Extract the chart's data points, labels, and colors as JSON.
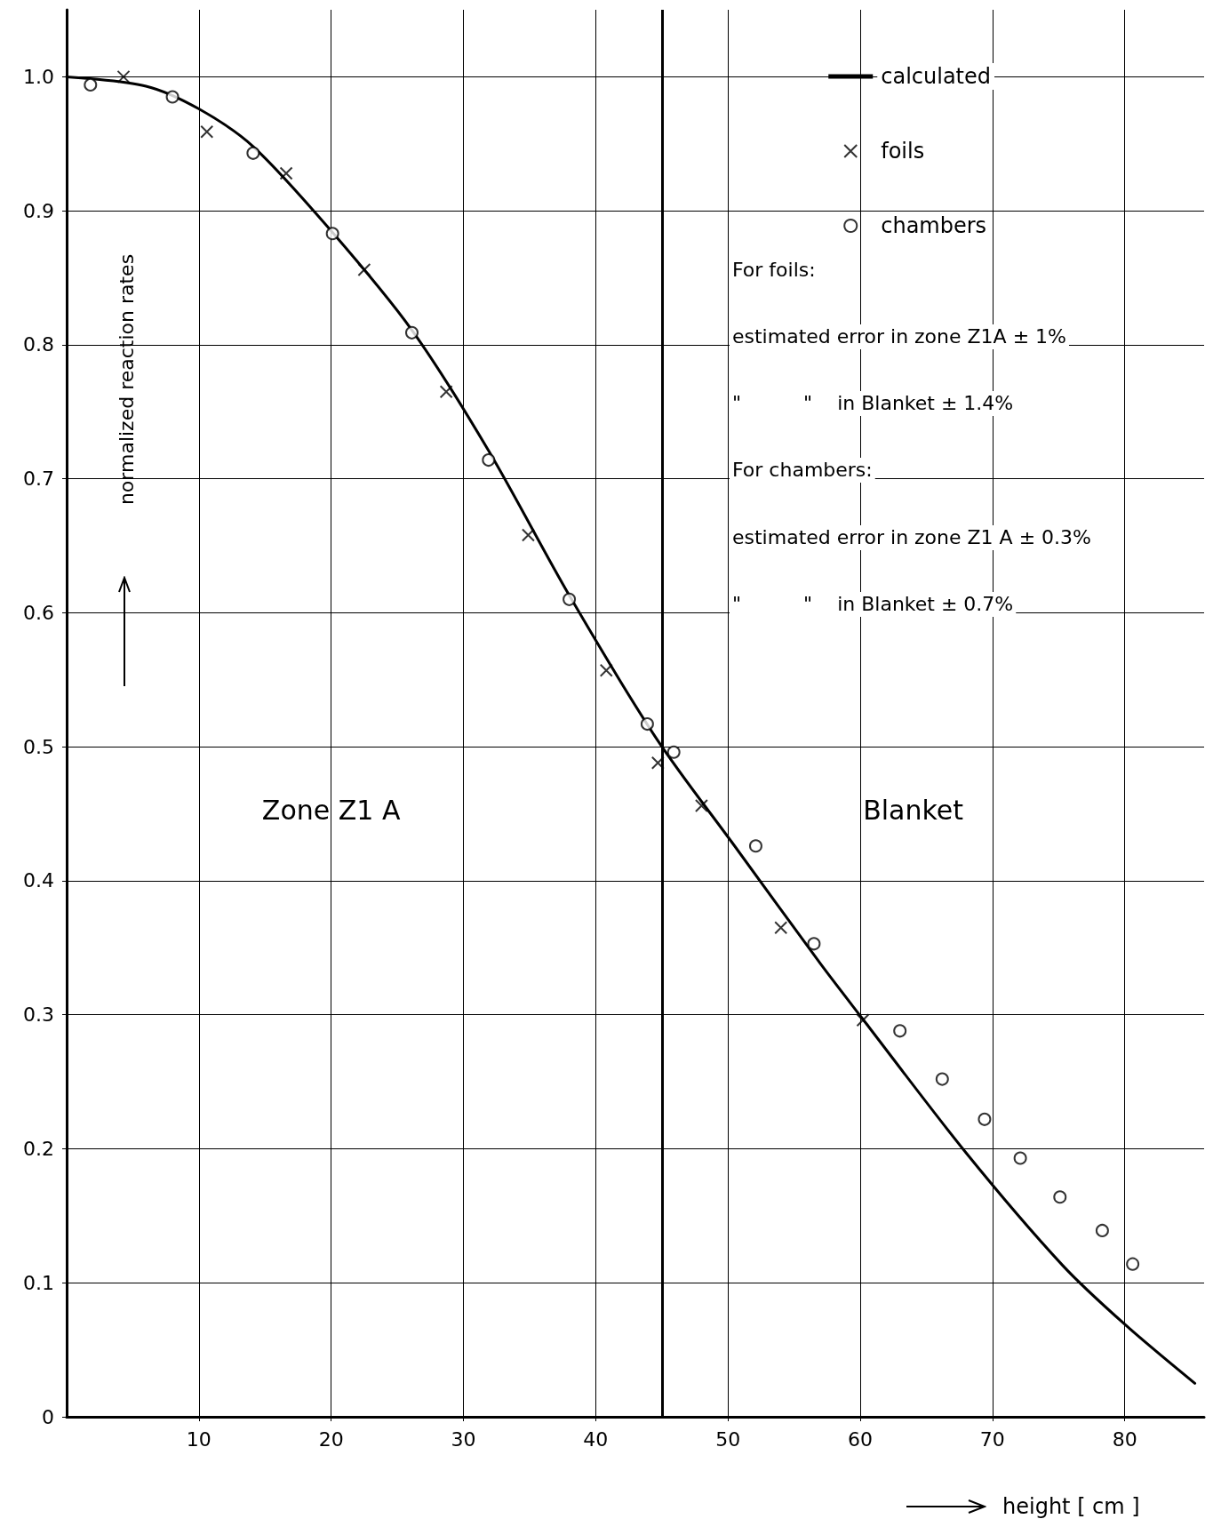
{
  "chart_data": {
    "type": "scatter",
    "xlabel": "height [ cm ]",
    "ylabel": "normalized reaction rates",
    "xlim": [
      0,
      86
    ],
    "ylim": [
      0,
      1.05
    ],
    "xticks": [
      10,
      20,
      30,
      40,
      50,
      60,
      70,
      80
    ],
    "yticks": [
      0,
      0.1,
      0.2,
      0.3,
      0.4,
      0.5,
      0.6,
      0.7,
      0.8,
      0.9,
      {
        "value": 1,
        "label": "1.0"
      }
    ],
    "grid": true,
    "legend": "top right",
    "series": [
      {
        "name": "calculated",
        "type": "line",
        "color": "#000000",
        "marker": "none",
        "line_style": "solid",
        "x": [
          0,
          6,
          10,
          14.1,
          20,
          26.1,
          31.9,
          38,
          44.6,
          50.5,
          57,
          60.1,
          68,
          75.3,
          80,
          85.3
        ],
        "values": [
          1.0,
          0.993,
          0.976,
          0.948,
          0.885,
          0.811,
          0.721,
          0.613,
          0.506,
          0.426,
          0.338,
          0.298,
          0.197,
          0.113,
          0.069,
          0.025
        ]
      },
      {
        "name": "foils",
        "type": "scatter",
        "color": "#000000",
        "marker": "cross",
        "x": [
          4.3,
          10.6,
          16.6,
          22.5,
          28.7,
          34.9,
          40.8,
          44.7,
          48.0,
          54.0,
          60.2
        ],
        "values": [
          1.0,
          0.959,
          0.928,
          0.856,
          0.765,
          0.658,
          0.557,
          0.488,
          0.456,
          0.365,
          0.296
        ]
      },
      {
        "name": "chambers",
        "type": "scatter",
        "color": "#000000",
        "marker": "circle",
        "x": [
          1.8,
          8.0,
          14.1,
          20.1,
          26.1,
          31.9,
          38.0,
          43.9,
          45.9,
          52.1,
          56.5,
          63.0,
          66.2,
          69.4,
          72.1,
          75.1,
          78.3,
          80.6
        ],
        "values": [
          0.994,
          0.985,
          0.943,
          0.883,
          0.809,
          0.714,
          0.61,
          0.517,
          0.496,
          0.426,
          0.353,
          0.288,
          0.252,
          0.222,
          0.193,
          0.164,
          0.139,
          0.114
        ]
      }
    ],
    "ref_lines": [
      {
        "axis": "x",
        "value": 45,
        "color": "#000000",
        "line_style": "solid"
      }
    ],
    "annotations": [
      "For foils:",
      "estimated error in zone Z1A ± 1%",
      "\"          \"    in Blanket ± 1.4%",
      "For chambers:",
      "estimated error in zone Z1 A ± 0.3%",
      "\"          \"    in Blanket ± 0.7%",
      "Zone Z1 A",
      "Blanket"
    ]
  }
}
